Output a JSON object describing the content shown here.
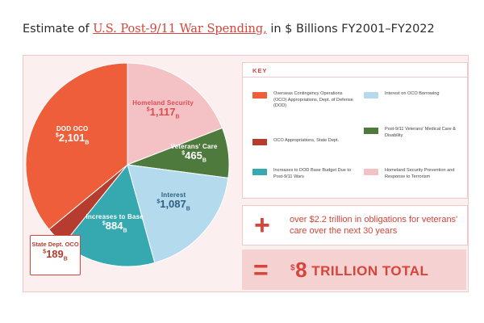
{
  "title": {
    "prefix": "Estimate of ",
    "highlight": "U.S. Post-9/11 War Spending,",
    "suffix": " in $ Billions FY2001–FY2022"
  },
  "key_title": "KEY",
  "chart_data": {
    "type": "pie",
    "title": "Estimate of U.S. Post-9/11 War Spending, in $ Billions FY2001–FY2022",
    "unit": "$ Billions",
    "slices": [
      {
        "label": "Homeland Security",
        "value": 1117,
        "color": "#f4c2c4",
        "label_color": "#d94e53",
        "key": "Homeland Security Prevention and Response to Terrorism"
      },
      {
        "label": "Veterans' Care",
        "value": 465,
        "color": "#4f7a3d",
        "label_color": "#ffffff",
        "key": "Post-9/11 Veterans' Medical Care & Disability"
      },
      {
        "label": "Interest",
        "value": 1087,
        "color": "#b4daee",
        "label_color": "#2f5f80",
        "key": "Interest on OCO Borrowing"
      },
      {
        "label": "Increases to Base",
        "value": 884,
        "color": "#36a8b0",
        "label_color": "#ffffff",
        "key": "Increases to DOD Base Budget Due to Post-9/11 Wars"
      },
      {
        "label": "State Dept. OCO",
        "value": 189,
        "color": "#b53c2e",
        "label_color": "#b53c2e",
        "key": "OCO Appropriations, State Dept."
      },
      {
        "label": "DOD OCO",
        "value": 2101,
        "color": "#ee5e3a",
        "label_color": "#ffffff",
        "key": "Overseas Contingency Operations (OCO) Appropriations, Dept. of Defense (DOD)"
      }
    ],
    "legend_placement": "right"
  },
  "key_items": [
    {
      "text": "Overseas Contingency Operations (OCO) Appropriations, Dept. of Defense (DOD)",
      "color": "#ee5e3a"
    },
    {
      "text": "Interest on OCO Borrowing",
      "color": "#b4daee"
    },
    {
      "text": "OCO Appropriations, State Dept.",
      "color": "#b53c2e"
    },
    {
      "text": "Post-9/11 Veterans' Medical Care & Disability",
      "color": "#4f7a3d"
    },
    {
      "text": "Increases to DOD Base Budget Due to Post-9/11 Wars",
      "color": "#36a8b0"
    },
    {
      "text": "Homeland Security Prevention and Response to Terrorism",
      "color": "#f4c2c4"
    }
  ],
  "obligations": {
    "symbol": "+",
    "text": "over $2.2 trillion in obligations for veterans' care over the next 30 years"
  },
  "total": {
    "symbol": "=",
    "currency": "$",
    "number": "8",
    "text": " TRILLION TOTAL"
  },
  "value_prefix": "$",
  "value_suffix": "B"
}
